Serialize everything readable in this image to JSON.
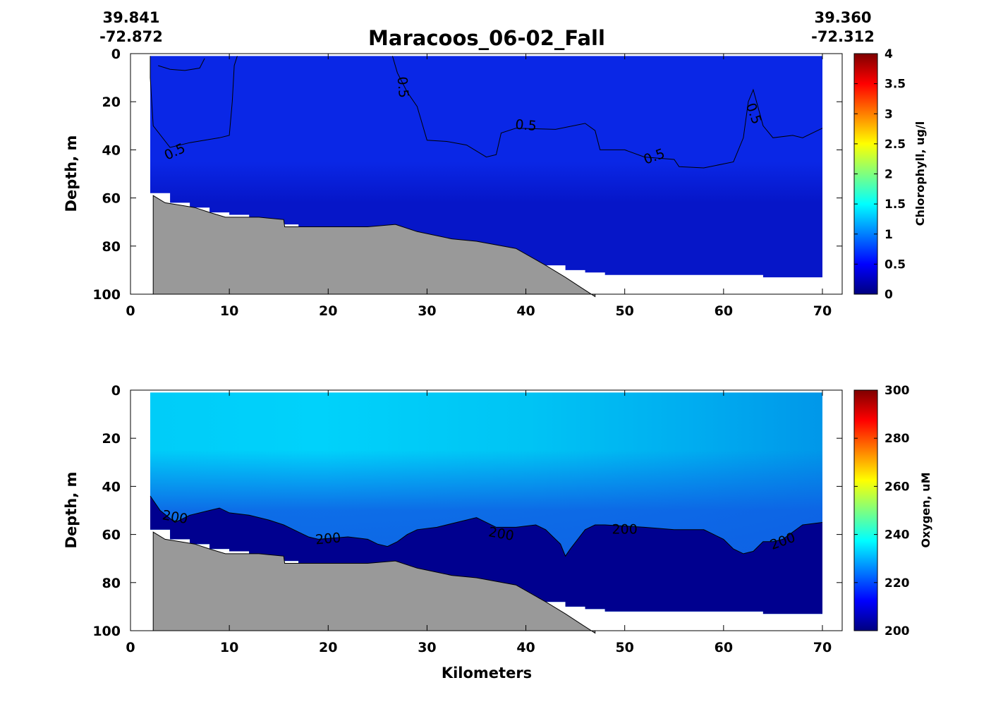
{
  "figure": {
    "title": "Maracoos_06-02_Fall",
    "start": {
      "lat": "39.841",
      "lon": "-72.872"
    },
    "end": {
      "lat": "39.360",
      "lon": "-72.312"
    },
    "x_label": "Kilometers"
  },
  "colors": {
    "bathymetry": "#999999",
    "jet_stops": [
      "#00007f",
      "#0000ff",
      "#007fff",
      "#00ffff",
      "#7fff7f",
      "#ffff00",
      "#ff7f00",
      "#ff0000",
      "#7f0000"
    ]
  },
  "chart_data": [
    {
      "type": "heatmap",
      "variable": "Chlorophyll",
      "colorbar_label": "Chlorophyll, ug/l",
      "ylabel": "Depth, m",
      "xlim": [
        0,
        72
      ],
      "ylim": [
        100,
        0
      ],
      "x_ticks": [
        0,
        10,
        20,
        30,
        40,
        50,
        60,
        70
      ],
      "y_ticks": [
        0,
        20,
        40,
        60,
        80,
        100
      ],
      "colorbar_range": [
        0,
        4
      ],
      "colorbar_ticks": [
        "4",
        "3.5",
        "3",
        "2.5",
        "2",
        "1.5",
        "1",
        "0.5",
        "0"
      ],
      "field_base_color": "#0a27e6",
      "field_deep_color": "#0616c8",
      "contour_level": 0.5,
      "contour_labels": [
        {
          "text": "0.5",
          "x": 4.5,
          "y": 41,
          "angle": -25
        },
        {
          "text": "0.5",
          "x": 27.5,
          "y": 14,
          "angle": 85
        },
        {
          "text": "0.5",
          "x": 40,
          "y": 30,
          "angle": 5
        },
        {
          "text": "0.5",
          "x": 53,
          "y": 43,
          "angle": -20
        },
        {
          "text": "0.5",
          "x": 63,
          "y": 25,
          "angle": 70
        }
      ],
      "contour_lines": [
        [
          [
            2.0,
            1.0
          ],
          [
            2.0,
            10.0
          ],
          [
            2.3,
            30.0
          ],
          [
            4.0,
            39.0
          ],
          [
            6.0,
            37.0
          ],
          [
            9.0,
            35.0
          ],
          [
            10.0,
            34.0
          ],
          [
            10.3,
            20.0
          ],
          [
            10.5,
            5.0
          ],
          [
            10.8,
            1.0
          ]
        ],
        [
          [
            2.8,
            5.0
          ],
          [
            4.0,
            6.5
          ],
          [
            5.5,
            7.0
          ],
          [
            7.0,
            6.0
          ],
          [
            7.5,
            2.0
          ]
        ],
        [
          [
            26.5,
            1.0
          ],
          [
            27.0,
            8.0
          ],
          [
            28.0,
            16.0
          ],
          [
            29.0,
            22.0
          ],
          [
            30.0,
            36.0
          ],
          [
            32.0,
            36.5
          ],
          [
            34.0,
            38.0
          ],
          [
            36.0,
            43.0
          ],
          [
            37.0,
            42.0
          ],
          [
            37.5,
            33.0
          ],
          [
            39.0,
            31.0
          ],
          [
            43.0,
            31.5
          ],
          [
            46.0,
            29.0
          ],
          [
            47.0,
            32.0
          ],
          [
            47.5,
            40.0
          ],
          [
            50.0,
            40.0
          ],
          [
            52.0,
            43.0
          ],
          [
            55.0,
            44.0
          ],
          [
            55.5,
            47.0
          ],
          [
            58.0,
            47.5
          ],
          [
            61.0,
            45.0
          ],
          [
            62.0,
            35.0
          ],
          [
            62.5,
            20.0
          ],
          [
            63.0,
            15.0
          ],
          [
            64.0,
            30.0
          ],
          [
            65.0,
            35.0
          ],
          [
            67.0,
            34.0
          ],
          [
            68.0,
            35.0
          ],
          [
            70.0,
            31.0
          ]
        ]
      ],
      "bottom_depth_profile": [
        [
          2.3,
          59
        ],
        [
          3.5,
          62
        ],
        [
          5.0,
          63
        ],
        [
          6.5,
          64
        ],
        [
          8.0,
          66
        ],
        [
          9.6,
          68
        ],
        [
          11.0,
          68
        ],
        [
          13.0,
          68
        ],
        [
          15.5,
          69
        ],
        [
          15.6,
          72
        ],
        [
          17.0,
          72
        ],
        [
          18.0,
          72
        ],
        [
          21.0,
          72
        ],
        [
          24.0,
          72
        ],
        [
          26.8,
          71
        ],
        [
          29.0,
          74
        ],
        [
          32.5,
          77
        ],
        [
          35.0,
          78
        ],
        [
          39.0,
          81
        ],
        [
          42.0,
          88
        ],
        [
          44.0,
          93
        ],
        [
          45.5,
          97
        ],
        [
          47.0,
          101
        ]
      ],
      "data_coverage": [
        [
          2.0,
          1
        ],
        [
          70.0,
          1
        ],
        [
          70.0,
          93
        ],
        [
          64.0,
          93
        ],
        [
          64.0,
          92
        ],
        [
          48.0,
          92
        ],
        [
          48.0,
          91
        ],
        [
          46.0,
          91
        ],
        [
          46.0,
          90
        ],
        [
          44.0,
          90
        ],
        [
          44.0,
          88
        ],
        [
          42.0,
          88
        ],
        [
          39.0,
          81
        ],
        [
          35.0,
          78
        ],
        [
          32.5,
          77
        ],
        [
          29.0,
          74
        ],
        [
          26.8,
          71
        ],
        [
          24.0,
          72
        ],
        [
          17.0,
          72
        ],
        [
          17.0,
          71
        ],
        [
          15.5,
          71
        ],
        [
          15.5,
          69
        ],
        [
          13.0,
          68
        ],
        [
          12.0,
          68
        ],
        [
          12.0,
          67
        ],
        [
          10.0,
          67
        ],
        [
          10.0,
          66
        ],
        [
          8.0,
          66
        ],
        [
          8.0,
          64
        ],
        [
          6.0,
          64
        ],
        [
          6.0,
          62
        ],
        [
          4.0,
          62
        ],
        [
          4.0,
          58
        ],
        [
          2.0,
          58
        ]
      ]
    },
    {
      "type": "heatmap",
      "variable": "Oxygen",
      "colorbar_label": "Oxygen, uM",
      "ylabel": "Depth, m",
      "xlabel": "Kilometers",
      "xlim": [
        0,
        72
      ],
      "ylim": [
        100,
        0
      ],
      "x_ticks": [
        0,
        10,
        20,
        30,
        40,
        50,
        60,
        70
      ],
      "y_ticks": [
        0,
        20,
        40,
        60,
        80,
        100
      ],
      "colorbar_range": [
        200,
        300
      ],
      "colorbar_ticks": [
        "300",
        "280",
        "260",
        "240",
        "220",
        "200"
      ],
      "surface_colors": [
        [
          2,
          "#00ccf8"
        ],
        [
          20,
          "#00d2fb"
        ],
        [
          40,
          "#00c4f4"
        ],
        [
          55,
          "#00aef0"
        ],
        [
          70,
          "#0094e8"
        ]
      ],
      "middle_color": "#0f5ce4",
      "bottom_color": "#00008f",
      "contour_level": 200,
      "contour_labels": [
        {
          "text": "200",
          "x": 4.5,
          "y": 53,
          "angle": 10
        },
        {
          "text": "200",
          "x": 20,
          "y": 62,
          "angle": -5
        },
        {
          "text": "200",
          "x": 37.5,
          "y": 60,
          "angle": 10
        },
        {
          "text": "200",
          "x": 50,
          "y": 58,
          "angle": 0
        },
        {
          "text": "200",
          "x": 66,
          "y": 63,
          "angle": -20
        }
      ],
      "contour_line": [
        [
          2.0,
          44.0
        ],
        [
          3.0,
          50.0
        ],
        [
          4.5,
          55.0
        ],
        [
          6.0,
          52.0
        ],
        [
          8.0,
          50.0
        ],
        [
          9.0,
          49.0
        ],
        [
          10.0,
          51.0
        ],
        [
          12.0,
          52.0
        ],
        [
          14.0,
          54.0
        ],
        [
          15.5,
          56.0
        ],
        [
          17.0,
          59.0
        ],
        [
          18.0,
          61.0
        ],
        [
          19.0,
          62.0
        ],
        [
          22.0,
          61.0
        ],
        [
          24.0,
          62.0
        ],
        [
          25.0,
          64.0
        ],
        [
          26.0,
          65.0
        ],
        [
          27.0,
          63.0
        ],
        [
          28.0,
          60.0
        ],
        [
          29.0,
          58.0
        ],
        [
          31.0,
          57.0
        ],
        [
          33.0,
          55.0
        ],
        [
          35.0,
          53.0
        ],
        [
          37.0,
          57.0
        ],
        [
          39.0,
          57.0
        ],
        [
          41.0,
          56.0
        ],
        [
          42.0,
          58.0
        ],
        [
          43.5,
          64.0
        ],
        [
          44.0,
          69.0
        ],
        [
          44.5,
          66.0
        ],
        [
          46.0,
          58.0
        ],
        [
          47.0,
          56.0
        ],
        [
          48.0,
          56.0
        ],
        [
          52.0,
          57.0
        ],
        [
          55.0,
          58.0
        ],
        [
          58.0,
          58.0
        ],
        [
          59.0,
          60.0
        ],
        [
          60.0,
          62.0
        ],
        [
          61.0,
          66.0
        ],
        [
          62.0,
          68.0
        ],
        [
          63.0,
          67.0
        ],
        [
          64.0,
          63.0
        ],
        [
          65.0,
          63.0
        ],
        [
          66.0,
          62.0
        ],
        [
          68.0,
          56.0
        ],
        [
          70.0,
          55.0
        ]
      ],
      "bottom_depth_profile": [
        [
          2.3,
          59
        ],
        [
          3.5,
          62
        ],
        [
          5.0,
          63
        ],
        [
          6.5,
          64
        ],
        [
          8.0,
          66
        ],
        [
          9.6,
          68
        ],
        [
          11.0,
          68
        ],
        [
          13.0,
          68
        ],
        [
          15.5,
          69
        ],
        [
          15.6,
          72
        ],
        [
          17.0,
          72
        ],
        [
          18.0,
          72
        ],
        [
          21.0,
          72
        ],
        [
          24.0,
          72
        ],
        [
          26.8,
          71
        ],
        [
          29.0,
          74
        ],
        [
          32.5,
          77
        ],
        [
          35.0,
          78
        ],
        [
          39.0,
          81
        ],
        [
          42.0,
          88
        ],
        [
          44.0,
          93
        ],
        [
          45.5,
          97
        ],
        [
          47.0,
          101
        ]
      ],
      "data_coverage": [
        [
          2.0,
          1
        ],
        [
          70.0,
          1
        ],
        [
          70.0,
          93
        ],
        [
          64.0,
          93
        ],
        [
          64.0,
          92
        ],
        [
          48.0,
          92
        ],
        [
          48.0,
          91
        ],
        [
          46.0,
          91
        ],
        [
          46.0,
          90
        ],
        [
          44.0,
          90
        ],
        [
          44.0,
          88
        ],
        [
          42.0,
          88
        ],
        [
          39.0,
          81
        ],
        [
          35.0,
          78
        ],
        [
          32.5,
          77
        ],
        [
          29.0,
          74
        ],
        [
          26.8,
          71
        ],
        [
          24.0,
          72
        ],
        [
          17.0,
          72
        ],
        [
          17.0,
          71
        ],
        [
          15.5,
          71
        ],
        [
          15.5,
          69
        ],
        [
          13.0,
          68
        ],
        [
          12.0,
          68
        ],
        [
          12.0,
          67
        ],
        [
          10.0,
          67
        ],
        [
          10.0,
          66
        ],
        [
          8.0,
          66
        ],
        [
          8.0,
          64
        ],
        [
          6.0,
          64
        ],
        [
          6.0,
          62
        ],
        [
          4.0,
          62
        ],
        [
          4.0,
          58
        ],
        [
          2.0,
          58
        ]
      ]
    }
  ]
}
